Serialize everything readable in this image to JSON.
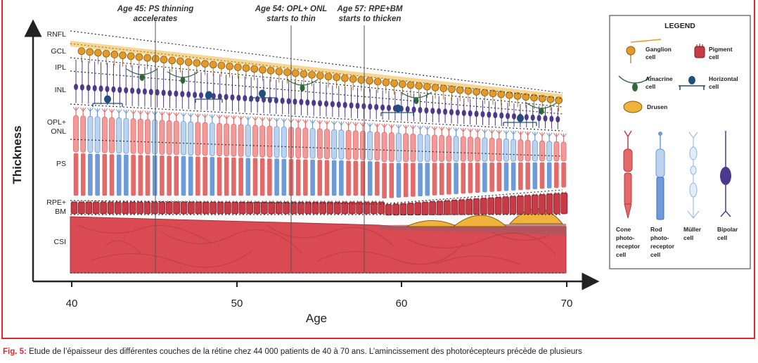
{
  "axes": {
    "y_title": "Thickness",
    "x_title": "Age",
    "x_ticks": [
      "40",
      "50",
      "60",
      "70"
    ]
  },
  "layers": [
    {
      "name": "RNFL"
    },
    {
      "name": "GCL"
    },
    {
      "name": "IPL"
    },
    {
      "name": "INL"
    },
    {
      "name": "OPL+",
      "name2": "ONL"
    },
    {
      "name": "PS"
    },
    {
      "name": "RPE+",
      "name2": "BM"
    },
    {
      "name": "CSI"
    }
  ],
  "annotations": [
    {
      "line1": "Age 45: PS thinning",
      "line2": "accelerates"
    },
    {
      "line1": "Age 54: OPL+ ONL",
      "line2": "starts to thin"
    },
    {
      "line1": "Age 57:  RPE+BM",
      "line2": "starts to thicken"
    }
  ],
  "legend": {
    "title": "LEGEND",
    "ganglion": {
      "l1": "Ganglion",
      "l2": "cell"
    },
    "pigment": {
      "l1": "Pigment",
      "l2": "cell"
    },
    "amacrine": {
      "l1": "Amacrine",
      "l2": "cell"
    },
    "horizontal": {
      "l1": "Horizontal",
      "l2": "cell"
    },
    "drusen": {
      "l1": "Drusen"
    },
    "cone": {
      "l1": "Cone",
      "l2": "photo-",
      "l3": "receptor",
      "l4": "cell"
    },
    "rod": {
      "l1": "Rod",
      "l2": "photo-",
      "l3": "receptor",
      "l4": "cell"
    },
    "muller": {
      "l1": "Müller",
      "l2": "cell"
    },
    "bipolar": {
      "l1": "Bipolar",
      "l2": "cell"
    }
  },
  "caption": {
    "label": "Fig. 5:",
    "text": " Étude de l’épaisseur des différentes couches de la rétine chez 44 000 patients de 40 à 70 ans. L’amincissement des photorécepteurs précède de plusieurs"
  },
  "colors": {
    "frame": "#e0262f",
    "ganglion": "#e39a2a",
    "bipolar": "#4b3a8c",
    "amacrine": "#2e6b3a",
    "horizontal": "#1f4f7a",
    "cone": "#e46a6a",
    "rod": "#6d9ad8",
    "muller": "#c9dcef",
    "rpe": "#c73a46",
    "choroid": "#d94a52",
    "drusen": "#f0b43c"
  }
}
